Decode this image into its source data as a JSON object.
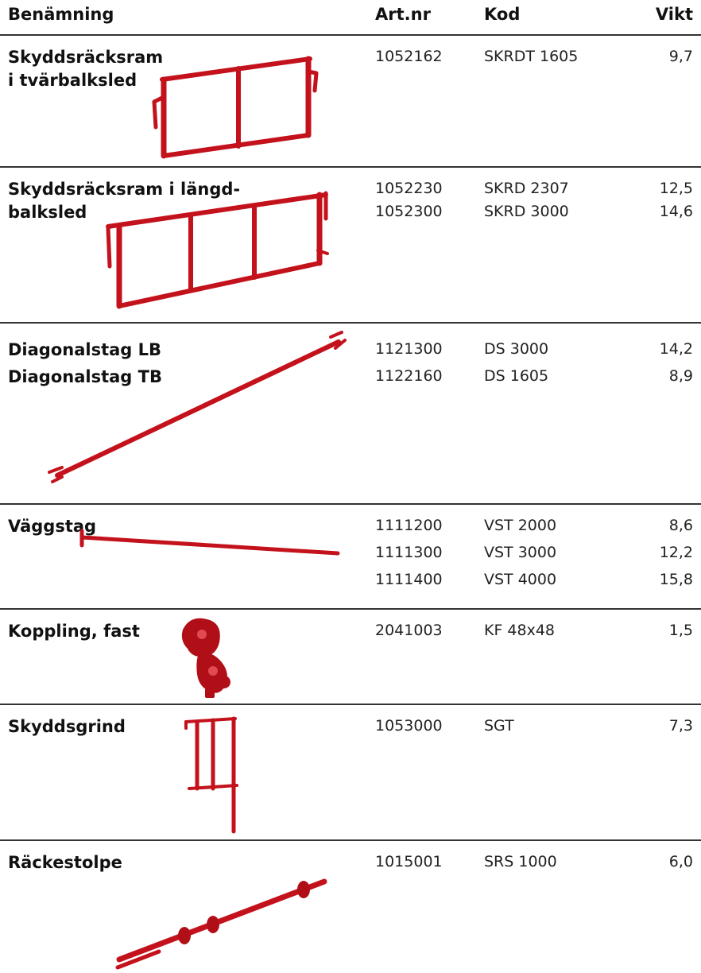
{
  "header": {
    "col_name": "Benämning",
    "col_art": "Art.nr",
    "col_kod": "Kod",
    "col_vikt": "Vikt"
  },
  "colors": {
    "product_red": "#c4121c",
    "line": "#333333"
  },
  "sections": [
    {
      "name": "Skyddsräcksram\ni tvärbalksled",
      "icon": "guardrail-frame-cross-icon",
      "rows": [
        {
          "art": "1052162",
          "kod": "SKRDT 1605",
          "vikt": "9,7"
        }
      ]
    },
    {
      "name": "Skyddsräcksram i längd-\nbalksled",
      "icon": "guardrail-frame-long-icon",
      "rows": [
        {
          "art": "1052230",
          "kod": "SKRD 2307",
          "vikt": "12,5"
        },
        {
          "art": "1052300",
          "kod": "SKRD 3000",
          "vikt": "14,6"
        }
      ]
    },
    {
      "name": "Diagonalstag LB",
      "name2": "Diagonalstag TB",
      "icon": "diagonal-brace-icon",
      "rows": [
        {
          "art": "1121300",
          "kod": "DS 3000",
          "vikt": "14,2"
        },
        {
          "art": "1122160",
          "kod": "DS 1605",
          "vikt": "8,9"
        }
      ]
    },
    {
      "name": "Väggstag",
      "icon": "wall-tie-icon",
      "rows": [
        {
          "art": "1111200",
          "kod": "VST 2000",
          "vikt": "8,6"
        },
        {
          "art": "1111300",
          "kod": "VST 3000",
          "vikt": "12,2"
        },
        {
          "art": "1111400",
          "kod": "VST 4000",
          "vikt": "15,8"
        }
      ]
    },
    {
      "name": "Koppling, fast",
      "icon": "fixed-coupler-icon",
      "rows": [
        {
          "art": "2041003",
          "kod": "KF 48x48",
          "vikt": "1,5"
        }
      ]
    },
    {
      "name": "Skyddsgrind",
      "icon": "safety-gate-icon",
      "rows": [
        {
          "art": "1053000",
          "kod": "SGT",
          "vikt": "7,3"
        }
      ]
    },
    {
      "name": "Räckestolpe",
      "icon": "railing-post-icon",
      "rows": [
        {
          "art": "1015001",
          "kod": "SRS 1000",
          "vikt": "6,0"
        }
      ]
    }
  ]
}
